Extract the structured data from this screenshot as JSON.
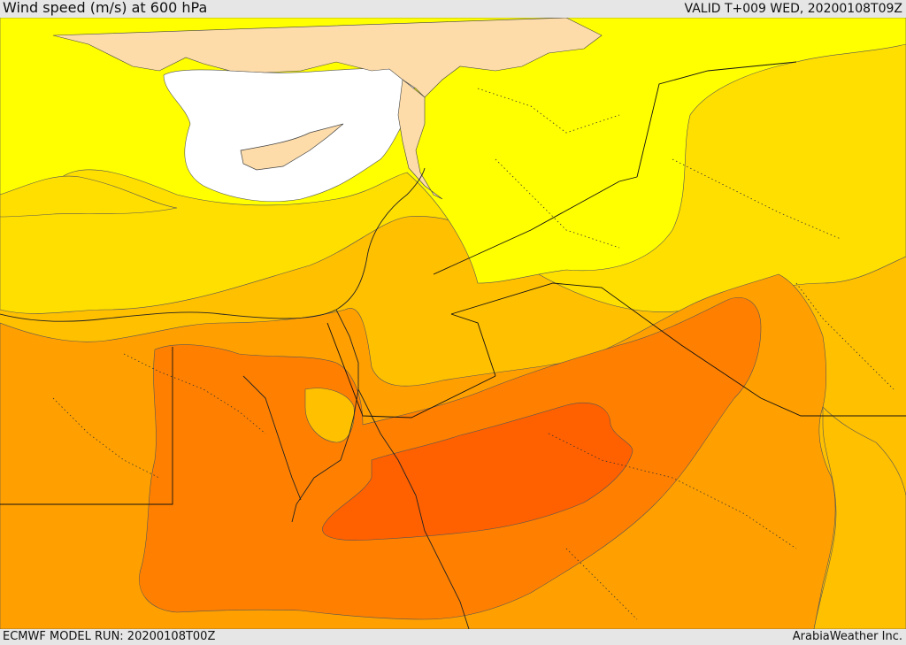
{
  "header": {
    "title": "Wind speed (m/s) at 600 hPa",
    "valid": "VALID T+009 WED, 20200108T09Z"
  },
  "footer": {
    "model_run": "ECMWF MODEL RUN: 20200108T00Z",
    "credit": "ArabiaWeather Inc."
  },
  "map": {
    "field": "wind speed",
    "level": "600 hPa",
    "fill_colors": {
      "calm": "#ffffff",
      "band1": "#ffff00",
      "band2": "#ffdf00",
      "band3": "#ffc000",
      "band4": "#ffa000",
      "band5": "#ff8000",
      "band6": "#ff6000"
    },
    "land_no_data_color": "#fddcaa",
    "border_color": "#222222"
  }
}
